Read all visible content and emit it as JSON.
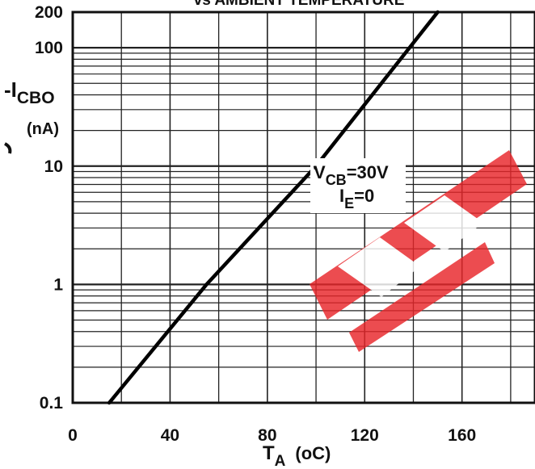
{
  "chart_data": {
    "type": "line",
    "title": "vs AMBIENT TEMPERATURE",
    "xlabel": {
      "main": "T",
      "sub": "A",
      "unit": "(oC)"
    },
    "ylabel": {
      "main": "-I",
      "sub": "CBO",
      "unit": "(nA)"
    },
    "x_scale": "linear",
    "y_scale": "log",
    "xlim": [
      0,
      190
    ],
    "ylim": [
      0.1,
      200
    ],
    "x_ticks": [
      0,
      40,
      80,
      120,
      160
    ],
    "x_tick_labels": [
      "0",
      "40",
      "80",
      "120",
      "160"
    ],
    "y_ticks": [
      0.1,
      1,
      10,
      100,
      200
    ],
    "y_tick_labels": [
      "0.1",
      "1",
      "10",
      "100",
      "200"
    ],
    "grid": true,
    "series": [
      {
        "x": [
          15,
          55,
          100,
          150
        ],
        "y": [
          0.1,
          1.0,
          10,
          200
        ],
        "color": "#000000"
      }
    ],
    "annotations": [
      {
        "parts": [
          "V",
          "CB",
          "=30V"
        ],
        "x": 100,
        "y": 10
      },
      {
        "parts": [
          "I",
          "E",
          "=0"
        ]
      }
    ]
  },
  "watermark": {
    "color": "#e8262a"
  }
}
